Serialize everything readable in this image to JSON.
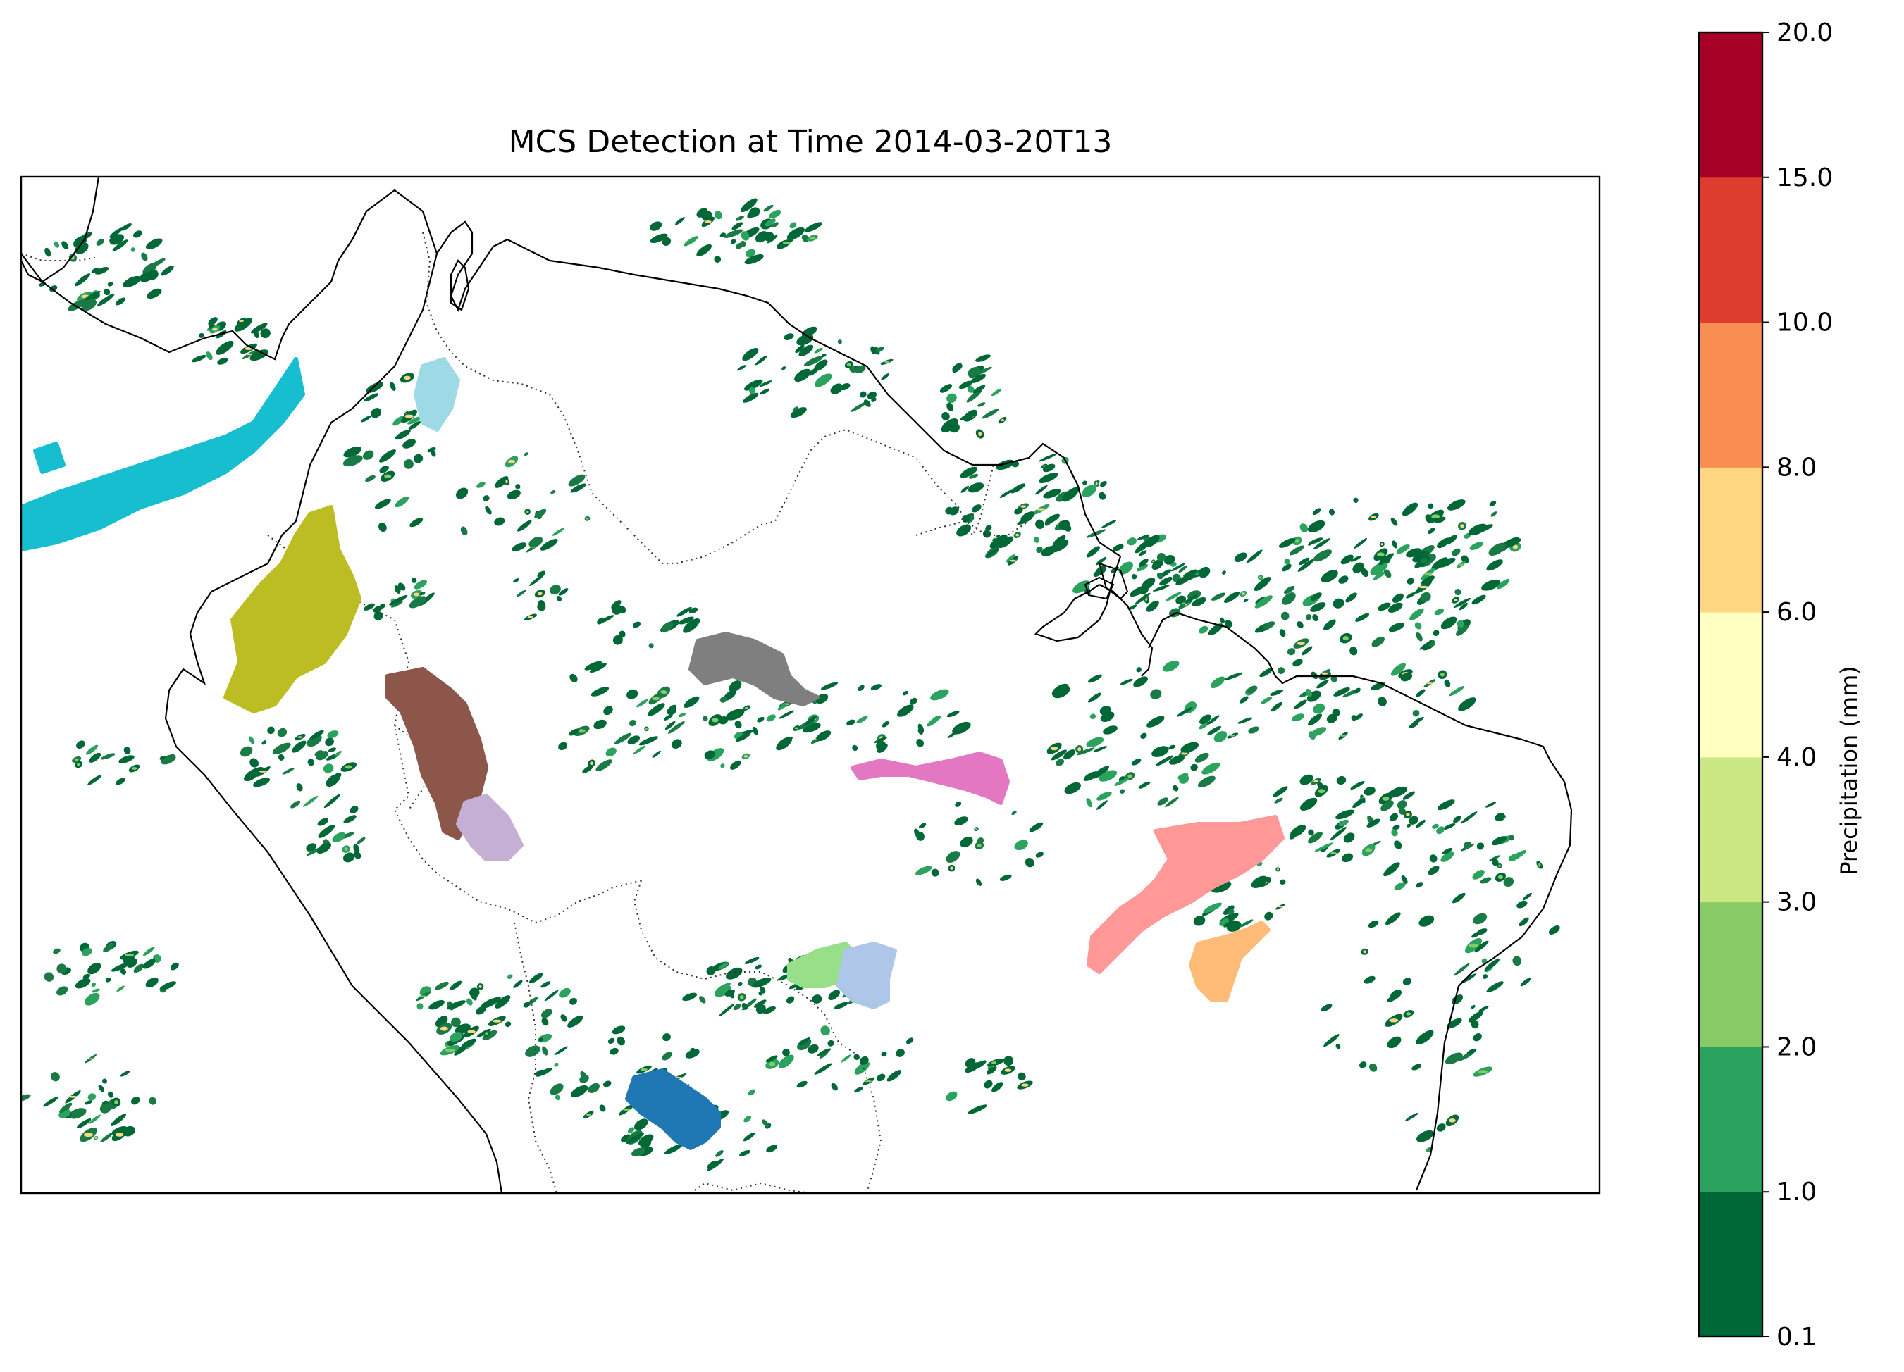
{
  "title": "MCS Detection at Time 2014-03-20T13",
  "colorbar": {
    "label": "Precipitation (mm)",
    "ticks": [
      "0.1",
      "1.0",
      "2.0",
      "3.0",
      "4.0",
      "6.0",
      "8.0",
      "10.0",
      "15.0",
      "20.0"
    ],
    "colors": [
      "#006837",
      "#2ca25f",
      "#87cb66",
      "#cbe783",
      "#ffffc0",
      "#fed581",
      "#f88e52",
      "#dd3d2d",
      "#a50026"
    ]
  },
  "mcs_colors": [
    "#17becf",
    "#9edae5",
    "#bcbd22",
    "#8c564b",
    "#c5b0d5",
    "#7f7f7f",
    "#e377c2",
    "#ff9896",
    "#ffbb78",
    "#98df8a",
    "#aec7e8",
    "#1f77b4"
  ]
}
